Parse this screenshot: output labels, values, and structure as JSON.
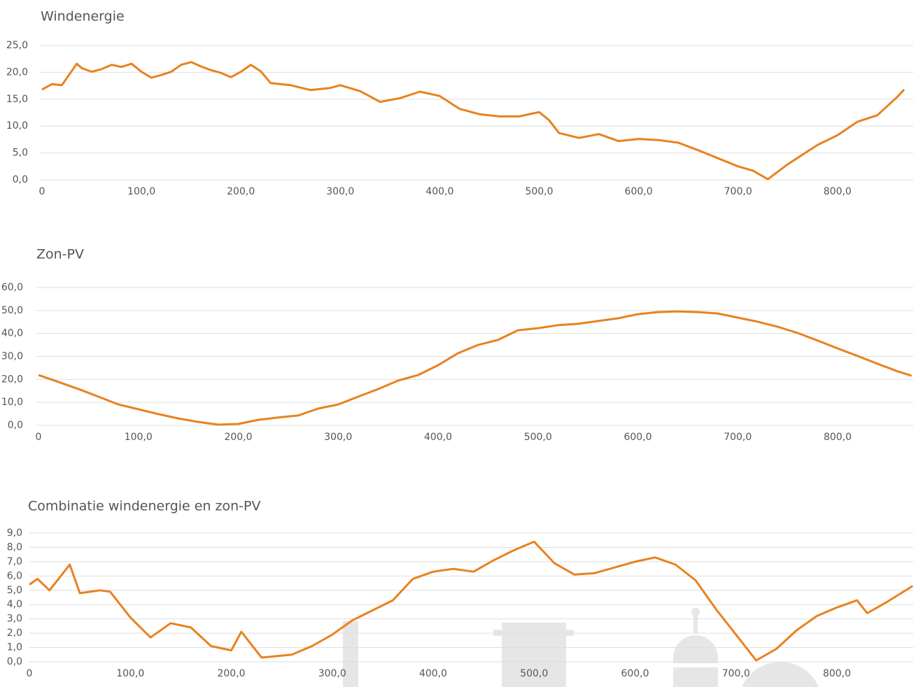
{
  "chart_data": [
    {
      "type": "line",
      "title": "Windenergie",
      "color": "#e8821e",
      "grid": true,
      "xlim": [
        0,
        880
      ],
      "ylim": [
        0,
        25
      ],
      "xticks": [
        0,
        {
          "value": 100,
          "label": "100,0"
        },
        {
          "value": 200,
          "label": "200,0"
        },
        {
          "value": 300,
          "label": "300,0"
        },
        {
          "value": 400,
          "label": "400,0"
        },
        {
          "value": 500,
          "label": "500,0"
        },
        {
          "value": 600,
          "label": "600,0"
        },
        {
          "value": 700,
          "label": "700,0"
        },
        {
          "value": 800,
          "label": "800,0"
        }
      ],
      "yticks": [
        {
          "value": 0,
          "label": "0,0"
        },
        {
          "value": 5,
          "label": "5,0"
        },
        {
          "value": 10,
          "label": "10,0"
        },
        {
          "value": 15,
          "label": "15,0"
        },
        {
          "value": 20,
          "label": "20,0"
        },
        {
          "value": 25,
          "label": "25,0"
        }
      ],
      "x": [
        0,
        10,
        20,
        35,
        40,
        50,
        60,
        70,
        80,
        90,
        100,
        110,
        120,
        130,
        140,
        150,
        160,
        170,
        180,
        190,
        200,
        210,
        220,
        230,
        250,
        270,
        290,
        300,
        320,
        340,
        360,
        380,
        400,
        420,
        440,
        460,
        480,
        500,
        510,
        520,
        540,
        560,
        580,
        600,
        620,
        640,
        660,
        680,
        700,
        715,
        730,
        750,
        780,
        800,
        820,
        840,
        860,
        867
      ],
      "values": [
        16.8,
        17.8,
        17.6,
        21.6,
        20.8,
        20.1,
        20.6,
        21.4,
        21.0,
        21.6,
        20.1,
        19.0,
        19.5,
        20.1,
        21.4,
        21.9,
        21.1,
        20.4,
        19.9,
        19.1,
        20.1,
        21.4,
        20.2,
        18.0,
        17.6,
        16.7,
        17.1,
        17.6,
        16.5,
        14.5,
        15.2,
        16.4,
        15.6,
        13.2,
        12.2,
        11.8,
        11.8,
        12.6,
        11.1,
        8.7,
        7.8,
        8.5,
        7.2,
        7.6,
        7.4,
        6.9,
        5.5,
        4.0,
        2.5,
        1.7,
        0.1,
        2.9,
        6.5,
        8.3,
        10.8,
        12.0,
        15.4,
        16.8
      ]
    },
    {
      "type": "line",
      "title": "Zon-PV",
      "color": "#e8821e",
      "grid": true,
      "xlim": [
        0,
        880
      ],
      "ylim": [
        0,
        60
      ],
      "xticks": [
        0,
        {
          "value": 100,
          "label": "100,0"
        },
        {
          "value": 200,
          "label": "200,0"
        },
        {
          "value": 300,
          "label": "300,0"
        },
        {
          "value": 400,
          "label": "400,0"
        },
        {
          "value": 500,
          "label": "500,0"
        },
        {
          "value": 600,
          "label": "600,0"
        },
        {
          "value": 700,
          "label": "700,0"
        },
        {
          "value": 800,
          "label": "800,0"
        }
      ],
      "yticks": [
        {
          "value": 0,
          "label": "0,0"
        },
        {
          "value": 10,
          "label": "10,0"
        },
        {
          "value": 20,
          "label": "20,0"
        },
        {
          "value": 30,
          "label": "30,0"
        },
        {
          "value": 40,
          "label": "40,0"
        },
        {
          "value": 50,
          "label": "50,0"
        },
        {
          "value": 60,
          "label": "60,0"
        }
      ],
      "x": [
        0,
        20,
        40,
        60,
        80,
        100,
        120,
        140,
        160,
        180,
        200,
        220,
        240,
        260,
        280,
        300,
        320,
        340,
        360,
        380,
        400,
        420,
        440,
        460,
        480,
        500,
        520,
        540,
        560,
        580,
        600,
        620,
        640,
        660,
        680,
        700,
        720,
        740,
        760,
        780,
        800,
        820,
        840,
        860,
        874
      ],
      "values": [
        21.9,
        18.9,
        15.8,
        12.5,
        9.1,
        7.0,
        4.9,
        3.0,
        1.5,
        0.3,
        0.6,
        2.4,
        3.4,
        4.3,
        7.3,
        9.1,
        12.5,
        15.8,
        19.5,
        21.9,
        26.2,
        31.4,
        35.0,
        37.2,
        41.4,
        42.3,
        43.6,
        44.2,
        45.4,
        46.6,
        48.4,
        49.3,
        49.6,
        49.3,
        48.7,
        46.9,
        45.1,
        42.9,
        40.2,
        36.9,
        33.5,
        30.2,
        26.8,
        23.5,
        21.6
      ]
    },
    {
      "type": "line",
      "title": "Combinatie windenergie en zon-PV",
      "color": "#e8821e",
      "grid": true,
      "xlim": [
        0,
        880
      ],
      "ylim": [
        0,
        9
      ],
      "xticks": [
        0,
        {
          "value": 100,
          "label": "100,0"
        },
        {
          "value": 200,
          "label": "200,0"
        },
        {
          "value": 300,
          "label": "300,0"
        },
        {
          "value": 400,
          "label": "400,0"
        },
        {
          "value": 500,
          "label": "500,0"
        },
        {
          "value": 600,
          "label": "600,0"
        },
        {
          "value": 700,
          "label": "700,0"
        },
        {
          "value": 800,
          "label": "800,0"
        }
      ],
      "yticks": [
        {
          "value": 0,
          "label": "0,0"
        },
        {
          "value": 1,
          "label": "1,0"
        },
        {
          "value": 2,
          "label": "2,0"
        },
        {
          "value": 3,
          "label": "3,0"
        },
        {
          "value": 4,
          "label": "4,0"
        },
        {
          "value": 5,
          "label": "5,0"
        },
        {
          "value": 6,
          "label": "6,0"
        },
        {
          "value": 7,
          "label": "7,0"
        },
        {
          "value": 8,
          "label": "8,0"
        },
        {
          "value": 9,
          "label": "9,0"
        }
      ],
      "x": [
        0,
        8,
        20,
        40,
        50,
        70,
        80,
        100,
        120,
        140,
        160,
        180,
        200,
        210,
        230,
        260,
        280,
        300,
        320,
        340,
        360,
        380,
        400,
        420,
        440,
        460,
        480,
        500,
        520,
        540,
        560,
        580,
        600,
        620,
        640,
        660,
        680,
        700,
        720,
        740,
        760,
        780,
        800,
        820,
        830,
        850,
        875
      ],
      "values": [
        5.4,
        5.8,
        5.0,
        6.8,
        4.8,
        5.0,
        4.9,
        3.1,
        1.7,
        2.7,
        2.4,
        1.1,
        0.8,
        2.1,
        0.3,
        0.5,
        1.1,
        1.9,
        2.9,
        3.6,
        4.3,
        5.8,
        6.3,
        6.5,
        6.3,
        7.1,
        7.8,
        8.4,
        6.9,
        6.1,
        6.2,
        6.6,
        7.0,
        7.3,
        6.8,
        5.7,
        3.7,
        1.9,
        0.1,
        0.9,
        2.2,
        3.2,
        3.8,
        4.3,
        3.4,
        4.2,
        5.3
      ]
    }
  ]
}
